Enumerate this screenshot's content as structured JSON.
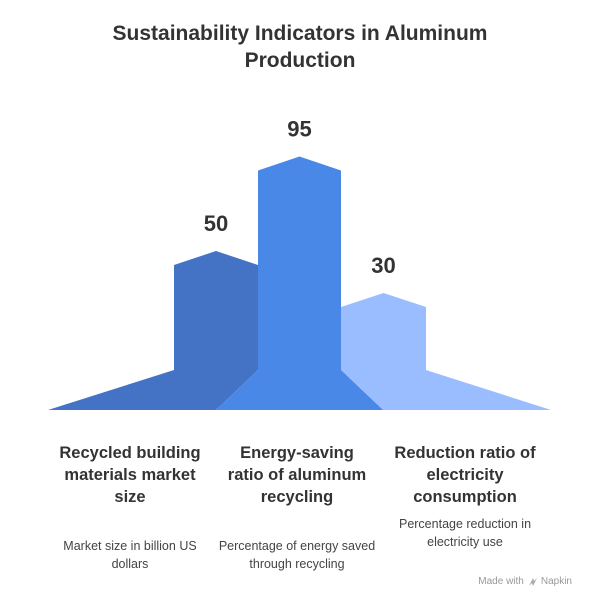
{
  "chart_data": {
    "type": "bar",
    "title": "Sustainability Indicators in Aluminum Production",
    "categories": [
      "Recycled building materials market size",
      "Energy-saving ratio of aluminum recycling",
      "Reduction ratio of electricity consumption"
    ],
    "values": [
      50,
      95,
      30
    ],
    "descriptions": [
      "Market size in billion US dollars",
      "Percentage of energy saved through recycling",
      "Percentage reduction in electricity use"
    ],
    "value_labels": [
      "50",
      "95",
      "30"
    ],
    "colors": [
      "#4472C4",
      "#4A88E8",
      "#99BDFF"
    ],
    "ylim": [
      0,
      100
    ],
    "xlabel": "",
    "ylabel": ""
  },
  "footer": {
    "credit_prefix": "Made with",
    "credit_brand": "Napkin"
  }
}
